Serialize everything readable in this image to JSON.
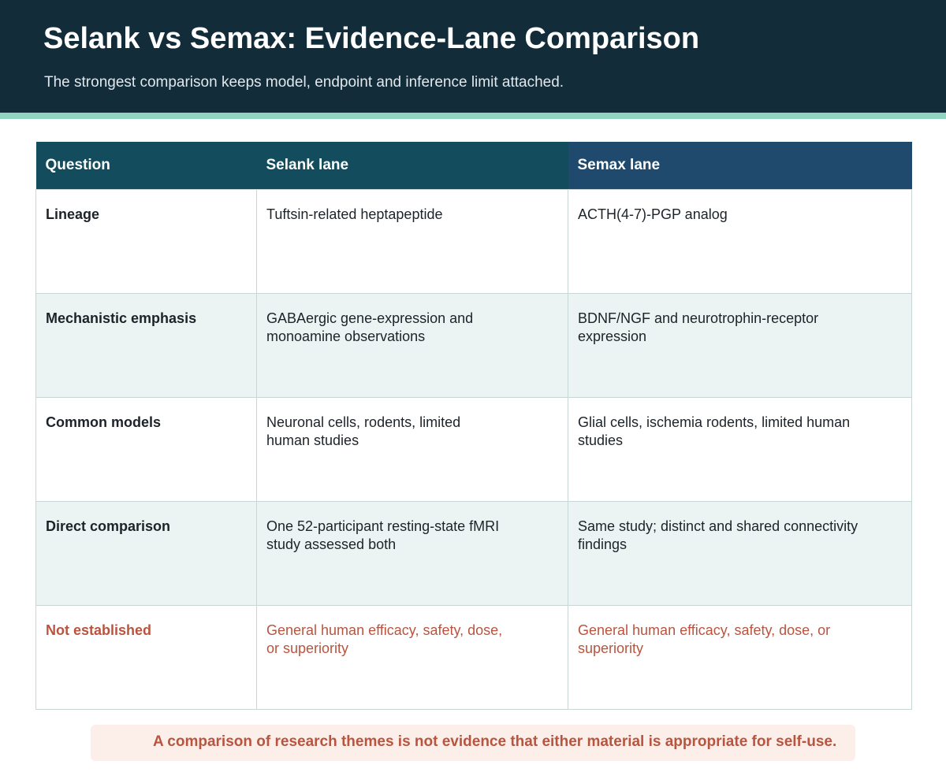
{
  "header": {
    "title": "Selank vs Semax: Evidence-Lane Comparison",
    "subtitle": "The strongest comparison keeps model, endpoint and inference limit attached."
  },
  "colors": {
    "header_bg": "#132c3a",
    "accent": "#8fd3c0",
    "selank_header": "#124c5d",
    "semax_header": "#1f4a6d",
    "row_shade": "#ebf4f2",
    "warning": "#b9543f"
  },
  "table": {
    "columns": [
      "Question",
      "Selank lane",
      "Semax lane"
    ],
    "rows": [
      {
        "question": "Lineage",
        "selank": "Tuftsin-related heptapeptide",
        "semax": "ACTH(4-7)-PGP analog"
      },
      {
        "question": "Mechanistic emphasis",
        "selank": "GABAergic gene-expression and monoamine observations",
        "semax": "BDNF/NGF and neurotrophin-receptor expression"
      },
      {
        "question": "Common models",
        "selank": "Neuronal cells, rodents, limited human studies",
        "semax": "Glial cells, ischemia rodents, limited human studies"
      },
      {
        "question": "Direct comparison",
        "selank": "One 52-participant resting-state fMRI study assessed both",
        "semax": "Same study; distinct and shared connectivity findings"
      },
      {
        "question": "Not established",
        "selank": "General human efficacy, safety, dose, or superiority",
        "semax": "General human efficacy, safety, dose, or superiority"
      }
    ]
  },
  "footer": {
    "note": "A comparison of research themes is not evidence that either material is appropriate for self-use."
  }
}
